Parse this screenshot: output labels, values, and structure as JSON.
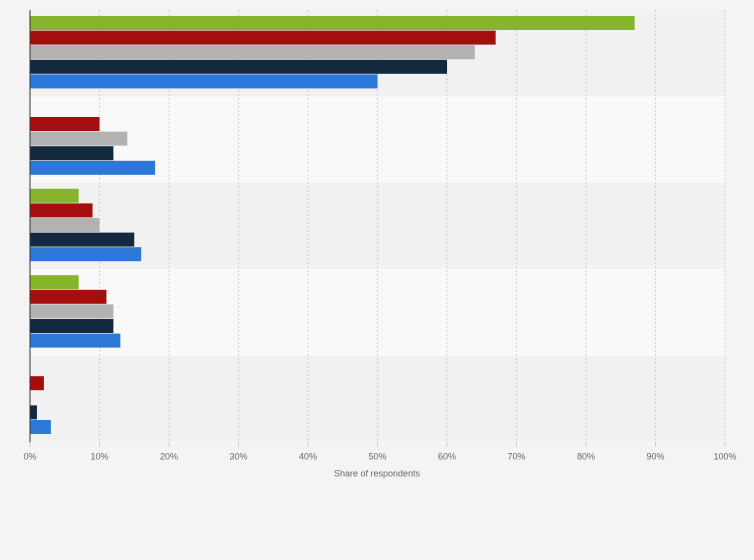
{
  "chart_data": {
    "type": "hbar",
    "categories": [
      null,
      null,
      null,
      null,
      null
    ],
    "series": [
      {
        "color": "#86b52b",
        "values": [
          87,
          0,
          7,
          7,
          0
        ]
      },
      {
        "color": "#a50e0e",
        "values": [
          67,
          10,
          9,
          11,
          2
        ]
      },
      {
        "color": "#b2b2b2",
        "values": [
          64,
          14,
          10,
          12,
          0
        ]
      },
      {
        "color": "#14293e",
        "values": [
          60,
          12,
          15,
          12,
          1
        ]
      },
      {
        "color": "#2b78d8",
        "values": [
          50,
          18,
          16,
          13,
          3
        ]
      }
    ],
    "xlabel": "Share of respondents",
    "xlim": [
      0,
      100
    ],
    "xticks": [
      {
        "value": 0,
        "label": "0%"
      },
      {
        "value": 10,
        "label": "10%"
      },
      {
        "value": 20,
        "label": "20%"
      },
      {
        "value": 30,
        "label": "30%"
      },
      {
        "value": 40,
        "label": "40%"
      },
      {
        "value": 50,
        "label": "50%"
      },
      {
        "value": 60,
        "label": "60%"
      },
      {
        "value": 70,
        "label": "70%"
      },
      {
        "value": 80,
        "label": "80%"
      },
      {
        "value": 90,
        "label": "90%"
      },
      {
        "value": 100,
        "label": "100%"
      }
    ],
    "grid": true
  }
}
